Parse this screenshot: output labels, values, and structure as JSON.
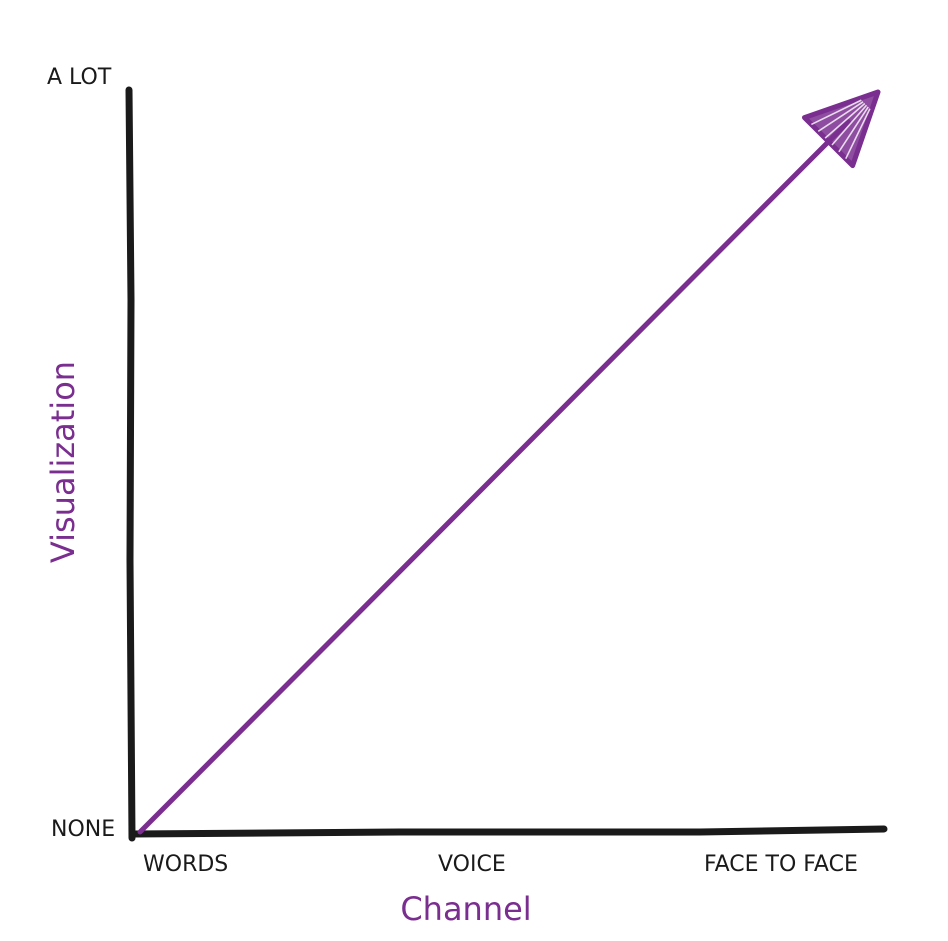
{
  "chart_data": {
    "type": "line",
    "title": "",
    "xlabel": "Channel",
    "ylabel": "Visualization",
    "categories": [
      "WORDS",
      "VOICE",
      "FACE TO FACE"
    ],
    "y_tick_labels": [
      "NONE",
      "A LOT"
    ],
    "series": [
      {
        "x": [
          "WORDS",
          "FACE TO FACE"
        ],
        "values": [
          0,
          1
        ]
      }
    ],
    "ylim": [
      0,
      1
    ],
    "grid": false,
    "arrow_at_end": true,
    "colors": {
      "axis": "#1a1a1a",
      "series": "#7a2e8f",
      "label": "#7a2e8f",
      "tick": "#1a1a1a"
    }
  }
}
